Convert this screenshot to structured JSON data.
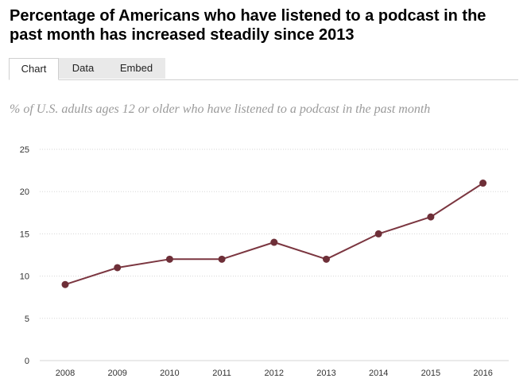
{
  "title": "Percentage of Americans who have listened to a podcast in the past month has increased steadily since 2013",
  "tabs": [
    {
      "label": "Chart"
    },
    {
      "label": "Data"
    },
    {
      "label": "Embed"
    }
  ],
  "colors": {
    "line": "#7b3640",
    "marker": "#6e2f38",
    "grid": "#d6d6d6"
  },
  "chart_data": {
    "type": "line",
    "title": "Percentage of Americans who have listened to a podcast in the past month has increased steadily since 2013",
    "subtitle": "% of U.S. adults ages 12 or older who have listened to a podcast in the past month",
    "xlabel": "",
    "ylabel": "",
    "categories": [
      "2008",
      "2009",
      "2010",
      "2011",
      "2012",
      "2013",
      "2014",
      "2015",
      "2016"
    ],
    "values": [
      9,
      11,
      12,
      12,
      14,
      12,
      15,
      17,
      21
    ],
    "ylim": [
      0,
      25
    ],
    "yticks": [
      "0",
      "5",
      "10",
      "15",
      "20",
      "25"
    ],
    "grid": true,
    "legend": "none"
  }
}
